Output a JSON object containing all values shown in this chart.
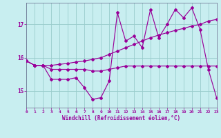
{
  "xlabel": "Windchill (Refroidissement éolien,°C)",
  "bg_color": "#c8eef0",
  "line_color": "#990099",
  "grid_color": "#99cccc",
  "xlim": [
    0,
    23
  ],
  "ylim": [
    14.5,
    17.65
  ],
  "yticks": [
    15,
    16,
    17
  ],
  "xticks": [
    0,
    1,
    2,
    3,
    4,
    5,
    6,
    7,
    8,
    9,
    10,
    11,
    12,
    13,
    14,
    15,
    16,
    17,
    18,
    19,
    20,
    21,
    22,
    23
  ],
  "series": [
    {
      "x": [
        0,
        1,
        2,
        3,
        4,
        5,
        6,
        7,
        8,
        9,
        10,
        11,
        12,
        13,
        14,
        15,
        16,
        17,
        18,
        19,
        20,
        21,
        22,
        23
      ],
      "y": [
        15.9,
        15.77,
        15.77,
        15.77,
        15.8,
        15.83,
        15.87,
        15.9,
        15.95,
        16.0,
        16.1,
        16.2,
        16.3,
        16.4,
        16.5,
        16.6,
        16.68,
        16.75,
        16.82,
        16.88,
        16.95,
        17.0,
        17.1,
        17.15
      ]
    },
    {
      "x": [
        0,
        1,
        2,
        3,
        4,
        5,
        6,
        7,
        8,
        9,
        10,
        11,
        12,
        13,
        14,
        15,
        16,
        17,
        18,
        19,
        20,
        21,
        22,
        23
      ],
      "y": [
        15.9,
        15.77,
        15.77,
        15.65,
        15.65,
        15.65,
        15.65,
        15.65,
        15.6,
        15.6,
        15.65,
        15.7,
        15.75,
        15.75,
        15.75,
        15.75,
        15.75,
        15.75,
        15.75,
        15.75,
        15.75,
        15.75,
        15.75,
        15.75
      ]
    },
    {
      "x": [
        0,
        1,
        2,
        3,
        4,
        5,
        6,
        7,
        8,
        9,
        10,
        11,
        12,
        13,
        14,
        15,
        16,
        17,
        18,
        19,
        20,
        21,
        22,
        23
      ],
      "y": [
        15.9,
        15.77,
        15.77,
        15.35,
        15.35,
        15.35,
        15.4,
        15.1,
        14.75,
        14.8,
        15.3,
        17.35,
        16.5,
        16.65,
        16.3,
        17.45,
        16.6,
        17.0,
        17.45,
        17.2,
        17.5,
        16.85,
        15.65,
        14.8
      ]
    }
  ]
}
